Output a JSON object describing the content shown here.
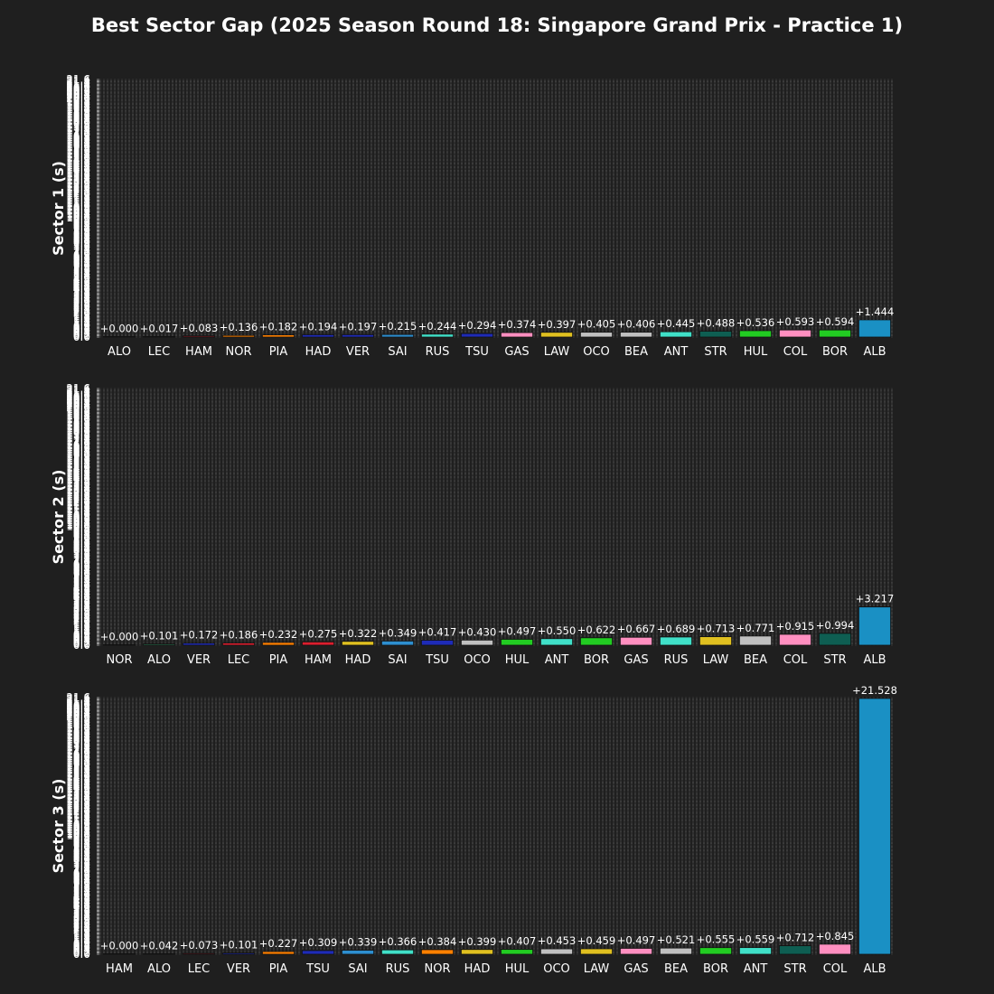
{
  "title": "Best Sector Gap (2025 Season Round 18: Singapore Grand Prix - Practice 1)",
  "chart_data": [
    {
      "type": "bar",
      "ylabel": "Sector 1 (s)",
      "ylim": [
        0,
        21.6
      ],
      "grid": true,
      "categories": [
        "ALO",
        "LEC",
        "HAM",
        "NOR",
        "PIA",
        "HAD",
        "VER",
        "SAI",
        "RUS",
        "TSU",
        "GAS",
        "LAW",
        "OCO",
        "BEA",
        "ANT",
        "STR",
        "HUL",
        "COL",
        "BOR",
        "ALB"
      ],
      "values": [
        0.0,
        0.017,
        0.083,
        0.136,
        0.182,
        0.194,
        0.197,
        0.215,
        0.244,
        0.294,
        0.374,
        0.397,
        0.405,
        0.406,
        0.445,
        0.488,
        0.536,
        0.593,
        0.594,
        1.444
      ],
      "labels": [
        "+0.000",
        "+0.017",
        "+0.083",
        "+0.136",
        "+0.182",
        "+0.194",
        "+0.197",
        "+0.215",
        "+0.244",
        "+0.294",
        "+0.374",
        "+0.397",
        "+0.405",
        "+0.406",
        "+0.445",
        "+0.488",
        "+0.536",
        "+0.593",
        "+0.594",
        "+1.444"
      ],
      "colors": [
        "#2a7a55",
        "#dc1e2e",
        "#dc1e2e",
        "#ff8000",
        "#ff8000",
        "#1e2bb8",
        "#1e2bb8",
        "#2d8fd0",
        "#40e0c8",
        "#1e2bb8",
        "#ff8fc0",
        "#e0c020",
        "#c0c0c0",
        "#c0c0c0",
        "#40e0c8",
        "#0e5e52",
        "#22cc22",
        "#ff8fc0",
        "#22cc22",
        "#1a90c4"
      ]
    },
    {
      "type": "bar",
      "ylabel": "Sector 2 (s)",
      "ylim": [
        0,
        21.6
      ],
      "grid": true,
      "categories": [
        "NOR",
        "ALO",
        "VER",
        "LEC",
        "PIA",
        "HAM",
        "HAD",
        "SAI",
        "TSU",
        "OCO",
        "HUL",
        "ANT",
        "BOR",
        "GAS",
        "RUS",
        "LAW",
        "BEA",
        "COL",
        "STR",
        "ALB"
      ],
      "values": [
        0.0,
        0.101,
        0.172,
        0.186,
        0.232,
        0.275,
        0.322,
        0.349,
        0.417,
        0.43,
        0.497,
        0.55,
        0.622,
        0.667,
        0.689,
        0.713,
        0.771,
        0.915,
        0.994,
        3.217
      ],
      "labels": [
        "+0.000",
        "+0.101",
        "+0.172",
        "+0.186",
        "+0.232",
        "+0.275",
        "+0.322",
        "+0.349",
        "+0.417",
        "+0.430",
        "+0.497",
        "+0.550",
        "+0.622",
        "+0.667",
        "+0.689",
        "+0.713",
        "+0.771",
        "+0.915",
        "+0.994",
        "+3.217"
      ],
      "colors": [
        "#ff8000",
        "#2a7a55",
        "#1e2bb8",
        "#dc1e2e",
        "#ff8000",
        "#dc1e2e",
        "#e0c020",
        "#2d8fd0",
        "#1e2bb8",
        "#c0c0c0",
        "#22cc22",
        "#40e0c8",
        "#22cc22",
        "#ff8fc0",
        "#40e0c8",
        "#e0c020",
        "#c0c0c0",
        "#ff8fc0",
        "#0e5e52",
        "#1a90c4"
      ]
    },
    {
      "type": "bar",
      "ylabel": "Sector 3 (s)",
      "ylim": [
        0,
        21.6
      ],
      "grid": true,
      "categories": [
        "HAM",
        "ALO",
        "LEC",
        "VER",
        "PIA",
        "TSU",
        "SAI",
        "RUS",
        "NOR",
        "HAD",
        "HUL",
        "OCO",
        "LAW",
        "GAS",
        "BEA",
        "BOR",
        "ANT",
        "STR",
        "COL",
        "ALB"
      ],
      "values": [
        0.0,
        0.042,
        0.073,
        0.101,
        0.227,
        0.309,
        0.339,
        0.366,
        0.384,
        0.399,
        0.407,
        0.453,
        0.459,
        0.497,
        0.521,
        0.555,
        0.559,
        0.712,
        0.845,
        21.528
      ],
      "labels": [
        "+0.000",
        "+0.042",
        "+0.073",
        "+0.101",
        "+0.227",
        "+0.309",
        "+0.339",
        "+0.366",
        "+0.384",
        "+0.399",
        "+0.407",
        "+0.453",
        "+0.459",
        "+0.497",
        "+0.521",
        "+0.555",
        "+0.559",
        "+0.712",
        "+0.845",
        "+21.528"
      ],
      "colors": [
        "#dc1e2e",
        "#2a7a55",
        "#dc1e2e",
        "#1e2bb8",
        "#ff8000",
        "#1e2bb8",
        "#2d8fd0",
        "#40e0c8",
        "#ff8000",
        "#e0c020",
        "#22cc22",
        "#c0c0c0",
        "#e0c020",
        "#ff8fc0",
        "#c0c0c0",
        "#22cc22",
        "#40e0c8",
        "#0e5e52",
        "#ff8fc0",
        "#1a90c4"
      ]
    }
  ]
}
